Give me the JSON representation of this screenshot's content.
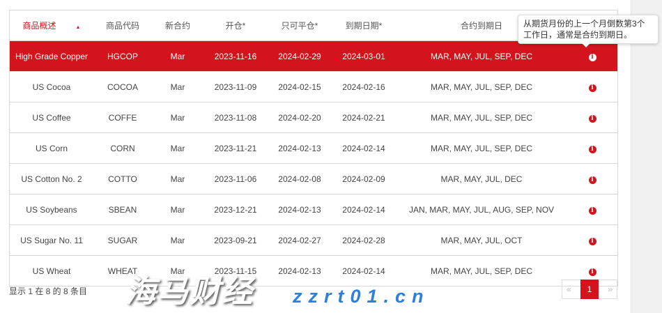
{
  "table": {
    "headers": [
      "商品概述",
      "商品代码",
      "新合约",
      "开仓*",
      "只可平仓*",
      "到期日期*",
      "合约到期日",
      ""
    ],
    "rows": [
      [
        "High Grade Copper",
        "HGCOP",
        "Mar",
        "2023-11-16",
        "2024-02-29",
        "2024-03-01",
        "MAR, MAY, JUL, SEP, DEC"
      ],
      [
        "US Cocoa",
        "COCOA",
        "Mar",
        "2023-11-09",
        "2024-02-15",
        "2024-02-16",
        "MAR, MAY, JUL, SEP, DEC"
      ],
      [
        "US Coffee",
        "COFFE",
        "Mar",
        "2023-11-08",
        "2024-02-20",
        "2024-02-21",
        "MAR, MAY, JUL, SEP, DEC"
      ],
      [
        "US Corn",
        "CORN",
        "Mar",
        "2023-11-21",
        "2024-02-13",
        "2024-02-14",
        "MAR, MAY, JUL, SEP, DEC"
      ],
      [
        "US Cotton No. 2",
        "COTTO",
        "Mar",
        "2023-11-06",
        "2024-02-08",
        "2024-02-09",
        "MAR, MAY, JUL, DEC"
      ],
      [
        "US Soybeans",
        "SBEAN",
        "Mar",
        "2023-12-21",
        "2024-02-13",
        "2024-02-14",
        "JAN, MAR, MAY, JUL, AUG, SEP, NOV"
      ],
      [
        "US Sugar No. 11",
        "SUGAR",
        "Mar",
        "2023-09-21",
        "2024-02-27",
        "2024-02-28",
        "MAR, MAY, JUL, OCT"
      ],
      [
        "US Wheat",
        "WHEAT",
        "Mar",
        "2023-11-15",
        "2024-02-13",
        "2024-02-14",
        "MAR, MAY, JUL, SEP, DEC"
      ]
    ],
    "selected_row": 0,
    "sort_icon": "caret-up-icon",
    "info_icon": "i"
  },
  "tooltip": "从期货月份的上一个月倒数第3个工作日，通常是合约到期日。",
  "footer": "显示 1 在 8 的 8 条目",
  "pager": {
    "prev": "«",
    "current": "1",
    "next": "»"
  },
  "watermark": {
    "text": "海马财经",
    "url": "zzrt01.cn"
  },
  "colors": {
    "accent": "#d3141c"
  }
}
